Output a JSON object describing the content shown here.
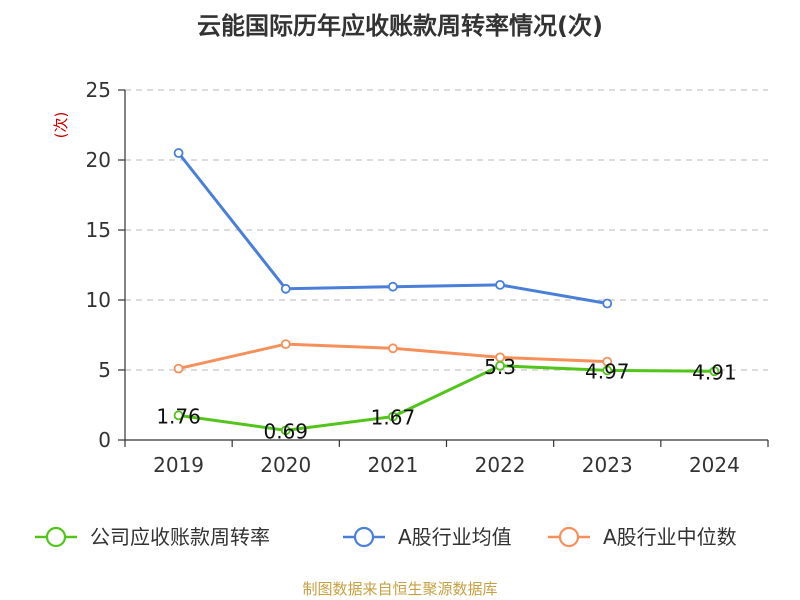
{
  "chart_data": {
    "type": "line",
    "title": "云能国际历年应收账款周转率情况(次)",
    "ylabel": "(次)",
    "xlabel": "",
    "categories": [
      "2019",
      "2020",
      "2021",
      "2022",
      "2023",
      "2024"
    ],
    "ylim": [
      0,
      25
    ],
    "yticks": [
      0,
      5,
      10,
      15,
      20,
      25
    ],
    "grid": true,
    "legend_position": "bottom",
    "series": [
      {
        "name": "公司应收账款周转率",
        "color": "#52c41a",
        "values": [
          1.76,
          0.69,
          1.67,
          5.3,
          4.97,
          4.91
        ],
        "labels": [
          "1.76",
          "0.69",
          "1.67",
          "5.3",
          "4.97",
          "4.91"
        ]
      },
      {
        "name": "A股行业均值",
        "color": "#4a7fd9",
        "values": [
          20.5,
          10.8,
          10.95,
          11.08,
          9.75,
          null
        ]
      },
      {
        "name": "A股行业中位数",
        "color": "#f5905a",
        "values": [
          5.1,
          6.85,
          6.55,
          5.9,
          5.6,
          null
        ]
      }
    ]
  },
  "footer": {
    "source": "制图数据来自恒生聚源数据库"
  }
}
